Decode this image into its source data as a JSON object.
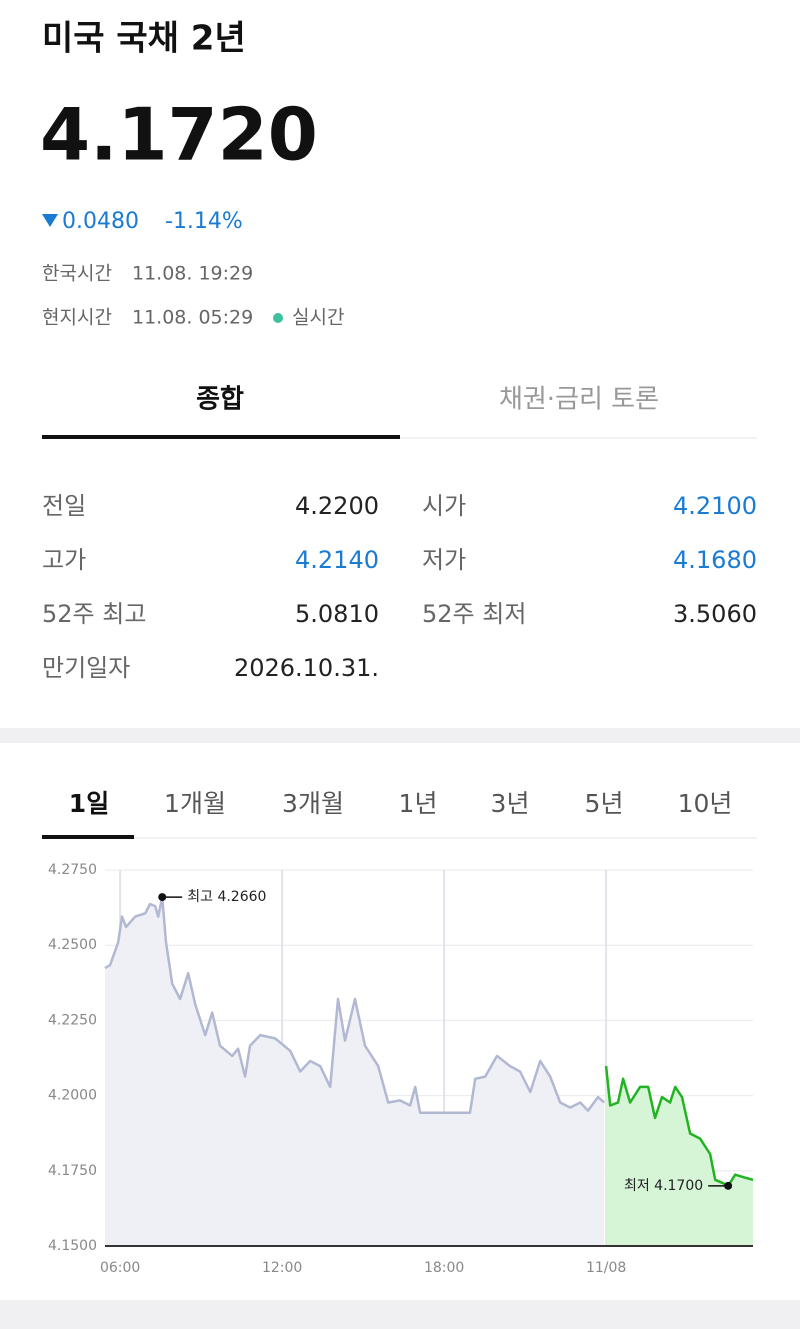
{
  "header": {
    "title": "미국 국채 2년",
    "price": "4.1720",
    "change": "0.0480",
    "change_pct": "-1.14%",
    "kst_label": "한국시간",
    "kst": "11.08. 19:29",
    "local_label": "현지시간",
    "local": "11.08. 05:29",
    "status": "실시간"
  },
  "tabs": [
    "종합",
    "채권·금리 토론"
  ],
  "stats": [
    {
      "label": "전일",
      "value": "4.2200",
      "color": "#222222"
    },
    {
      "label": "시가",
      "value": "4.2100",
      "color": "#1a7bd3"
    },
    {
      "label": "고가",
      "value": "4.2140",
      "color": "#1a7bd3"
    },
    {
      "label": "저가",
      "value": "4.1680",
      "color": "#1a7bd3"
    },
    {
      "label": "52주 최고",
      "value": "5.0810",
      "color": "#222222"
    },
    {
      "label": "52주 최저",
      "value": "3.5060",
      "color": "#222222"
    },
    {
      "label": "만기일자",
      "value": "2026.10.31.",
      "color": "#222222"
    }
  ],
  "range_tabs": [
    "1일",
    "1개월",
    "3개월",
    "1년",
    "3년",
    "5년",
    "10년"
  ],
  "chart_data": {
    "type": "line",
    "xlim": [
      5.44,
      29.44
    ],
    "xticks": [
      {
        "value": 6,
        "label": "06:00"
      },
      {
        "value": 12,
        "label": "12:00"
      },
      {
        "value": 18,
        "label": "18:00"
      },
      {
        "value": 24,
        "label": "11/08"
      }
    ],
    "ylim": [
      4.15,
      4.275
    ],
    "yticks": [
      {
        "value": 4.275,
        "label": "4.2750"
      },
      {
        "value": 4.25,
        "label": "4.2500"
      },
      {
        "value": 4.225,
        "label": "4.2250"
      },
      {
        "value": 4.2,
        "label": "4.2000"
      },
      {
        "value": 4.175,
        "label": "4.1750"
      },
      {
        "value": 4.15,
        "label": "4.1500"
      }
    ],
    "grid": true,
    "series": [
      {
        "color": "#b3b8d2",
        "fill": "#eef0f6",
        "x": [
          5.44,
          5.63,
          5.93,
          6.07,
          6.22,
          6.56,
          6.93,
          7.11,
          7.3,
          7.41,
          7.56,
          7.7,
          7.93,
          8.22,
          8.52,
          8.78,
          9.15,
          9.41,
          9.7,
          10.15,
          10.37,
          10.63,
          10.81,
          11.19,
          11.74,
          12.3,
          12.67,
          13.04,
          13.41,
          13.78,
          14.07,
          14.33,
          14.7,
          15.07,
          15.56,
          15.93,
          16.37,
          16.74,
          16.93,
          17.11,
          18.22,
          18.96,
          19.15,
          19.52,
          19.96,
          20.44,
          20.81,
          21.19,
          21.56,
          21.93,
          22.3,
          22.67,
          23.04,
          23.33,
          23.7,
          23.93
        ],
        "values": [
          4.2424,
          4.2434,
          4.251,
          4.2595,
          4.2561,
          4.2595,
          4.2606,
          4.2637,
          4.263,
          4.2595,
          4.266,
          4.251,
          4.2372,
          4.2321,
          4.2407,
          4.2304,
          4.2201,
          4.2276,
          4.2166,
          4.2132,
          4.2156,
          4.2063,
          4.2166,
          4.2201,
          4.219,
          4.2149,
          4.208,
          4.2115,
          4.2098,
          4.2029,
          4.2321,
          4.2183,
          4.2321,
          4.2166,
          4.2098,
          4.1977,
          4.1984,
          4.1967,
          4.2029,
          4.1943,
          4.1943,
          4.1943,
          4.2056,
          4.2063,
          4.2132,
          4.2098,
          4.208,
          4.2012,
          4.2115,
          4.2063,
          4.1977,
          4.196,
          4.1977,
          4.195,
          4.1995,
          4.1977
        ]
      },
      {
        "color": "#22b322",
        "fill": "#d6f5d6",
        "x": [
          24.0,
          24.15,
          24.44,
          24.63,
          24.89,
          25.26,
          25.56,
          25.81,
          26.07,
          26.37,
          26.56,
          26.81,
          27.11,
          27.48,
          27.85,
          28.04,
          28.3,
          28.52,
          28.78,
          29.15,
          29.44
        ],
        "values": [
          4.2098,
          4.1967,
          4.1977,
          4.2056,
          4.1977,
          4.2029,
          4.2029,
          4.1926,
          4.1995,
          4.1977,
          4.2029,
          4.1995,
          4.1874,
          4.1857,
          4.1806,
          4.172,
          4.171,
          4.17,
          4.1737,
          4.1727,
          4.172
        ]
      }
    ],
    "annotations": [
      {
        "text": "최고 4.2660",
        "x": 7.56,
        "y": 4.266,
        "side": "right"
      },
      {
        "text": "최저 4.1700",
        "x": 28.52,
        "y": 4.17,
        "side": "left"
      }
    ]
  }
}
